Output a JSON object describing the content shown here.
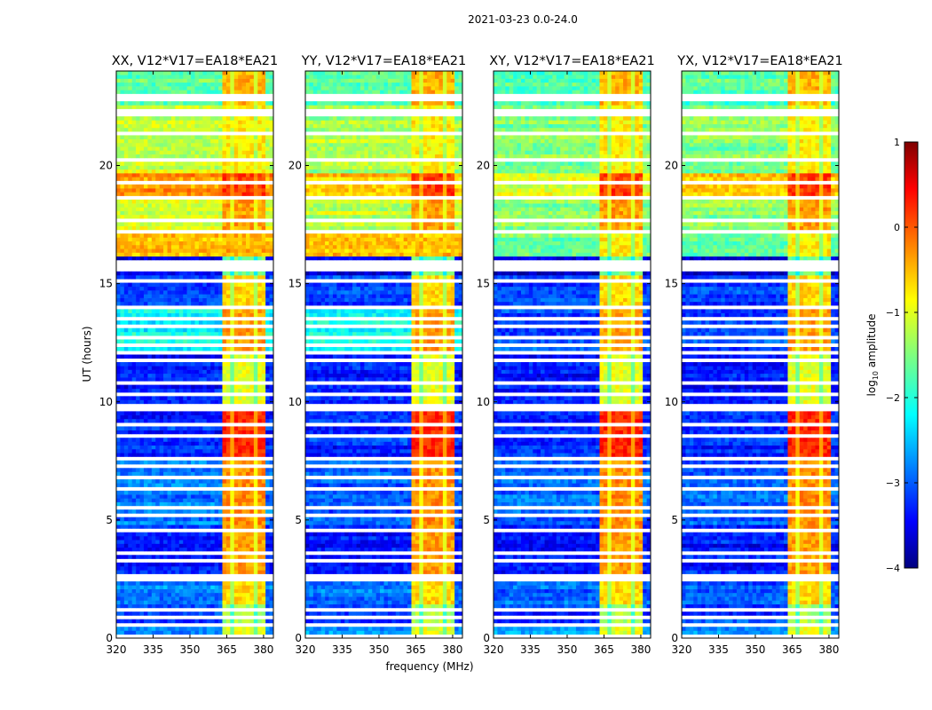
{
  "chart_data": {
    "type": "heatmap",
    "suptitle": "2021-03-23 0.0-24.0",
    "xlabel": "frequency (MHz)",
    "ylabel": "UT (hours)",
    "xlim": [
      320,
      384
    ],
    "ylim": [
      0,
      24
    ],
    "xticks": [
      320,
      335,
      350,
      365,
      380
    ],
    "yticks": [
      0,
      5,
      10,
      15,
      20
    ],
    "panels": [
      {
        "title": "XX, V12*V17=EA18*EA21",
        "pol": "XX"
      },
      {
        "title": "YY, V12*V17=EA18*EA21",
        "pol": "YY"
      },
      {
        "title": "XY, V12*V17=EA18*EA21",
        "pol": "XY"
      },
      {
        "title": "YX, V12*V17=EA18*EA21",
        "pol": "YX"
      }
    ],
    "colorbar": {
      "label": "log10 amplitude",
      "label_main": "log",
      "label_sub": "10",
      "label_rest": " amplitude",
      "vmin": -4,
      "vmax": 1,
      "ticks": [
        1,
        0,
        -1,
        -2,
        -3,
        -4
      ],
      "tick_labels": [
        "1",
        "0",
        "−1",
        "−2",
        "−3",
        "−4"
      ],
      "colormap": "jet"
    },
    "rfi_subbands_mhz": [
      [
        363,
        367
      ],
      [
        368,
        372
      ],
      [
        373,
        376.5
      ],
      [
        377,
        380
      ]
    ],
    "segments_log10_amplitude": [
      {
        "hours": [
          0,
          0.5
        ],
        "base": [
          -2.6,
          -2.6,
          -2.7,
          -2.7
        ],
        "rfi": -1.0
      },
      {
        "hours": [
          0.5,
          1.5
        ],
        "base": [
          -3.0,
          -3.0,
          -3.1,
          -3.1
        ],
        "rfi": -1.3
      },
      {
        "hours": [
          1.5,
          2.6
        ],
        "base": [
          -2.7,
          -2.8,
          -2.9,
          -2.9
        ],
        "rfi": -0.7
      },
      {
        "hours": [
          2.6,
          4.8
        ],
        "base": [
          -3.3,
          -3.3,
          -3.3,
          -3.3
        ],
        "rfi": -0.4
      },
      {
        "hours": [
          4.8,
          7.7
        ],
        "base": [
          -2.8,
          -2.9,
          -2.9,
          -2.9
        ],
        "rfi": -0.3
      },
      {
        "hours": [
          7.7,
          9.8
        ],
        "base": [
          -3.2,
          -3.2,
          -3.2,
          -3.2
        ],
        "rfi": 0.2
      },
      {
        "hours": [
          9.8,
          12.2
        ],
        "base": [
          -3.3,
          -3.3,
          -3.3,
          -3.3
        ],
        "rfi": -1.0
      },
      {
        "hours": [
          12.2,
          14.0
        ],
        "base": [
          -2.1,
          -2.0,
          -3.0,
          -3.0
        ],
        "rfi": -0.4
      },
      {
        "hours": [
          14.0,
          15.3
        ],
        "base": [
          -3.1,
          -3.1,
          -3.1,
          -3.1
        ],
        "rfi": -0.7
      },
      {
        "hours": [
          15.3,
          16.1
        ],
        "base": [
          -3.5,
          -3.5,
          -3.5,
          -3.5
        ],
        "rfi": -1.6
      },
      {
        "hours": [
          16.1,
          17.2
        ],
        "base": [
          -0.5,
          -0.6,
          -1.6,
          -1.6
        ],
        "rfi": -0.8
      },
      {
        "hours": [
          17.2,
          18.8
        ],
        "base": [
          -1.1,
          -1.2,
          -1.5,
          -1.4
        ],
        "rfi": -0.4
      },
      {
        "hours": [
          18.8,
          19.7
        ],
        "base": [
          -0.4,
          -0.6,
          -1.1,
          -0.6
        ],
        "rfi": 0.1
      },
      {
        "hours": [
          19.7,
          22.5
        ],
        "base": [
          -1.1,
          -1.3,
          -1.5,
          -1.5
        ],
        "rfi": -0.8
      },
      {
        "hours": [
          22.5,
          24.0
        ],
        "base": [
          -1.6,
          -1.6,
          -1.7,
          -1.7
        ],
        "rfi": -0.5
      }
    ],
    "flagged_hours": [
      0.15,
      0.55,
      0.85,
      1.2,
      1.45,
      1.75,
      2.45,
      2.65,
      3.3,
      3.55,
      4.55,
      4.95,
      5.2,
      5.55,
      6.35,
      6.8,
      7.3,
      7.65,
      7.85,
      8.55,
      9.0,
      9.65,
      9.85,
      10.35,
      10.75,
      11.35,
      11.75,
      12.05,
      12.45,
      12.75,
      13.2,
      13.55,
      14.05,
      14.55,
      15.05,
      15.35,
      15.55,
      15.75,
      15.95,
      16.15,
      17.25,
      17.65,
      18.25,
      18.65,
      19.25,
      19.85,
      20.25,
      20.65,
      20.95,
      21.35,
      21.75,
      22.15,
      22.35,
      22.75,
      22.95
    ]
  }
}
